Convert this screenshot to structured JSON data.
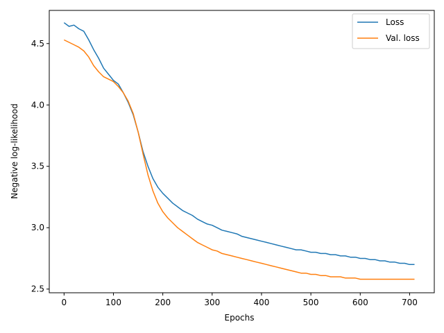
{
  "chart_data": {
    "type": "line",
    "title": "",
    "xlabel": "Epochs",
    "ylabel": "Negative log-likelihood",
    "xlim": [
      -30,
      750
    ],
    "ylim": [
      2.47,
      4.77
    ],
    "xticks": [
      0,
      100,
      200,
      300,
      400,
      500,
      600,
      700
    ],
    "xtick_labels": [
      "0",
      "100",
      "200",
      "300",
      "400",
      "500",
      "600",
      "700"
    ],
    "yticks": [
      2.5,
      3.0,
      3.5,
      4.0,
      4.5
    ],
    "ytick_labels": [
      "2.5",
      "3.0",
      "3.5",
      "4.0",
      "4.5"
    ],
    "grid": false,
    "legend_position": "top-right",
    "series": [
      {
        "name": "Loss",
        "color": "#1f77b4",
        "x": [
          0,
          10,
          20,
          30,
          40,
          50,
          60,
          70,
          80,
          90,
          100,
          110,
          120,
          130,
          140,
          150,
          160,
          170,
          180,
          190,
          200,
          210,
          220,
          230,
          240,
          250,
          260,
          270,
          280,
          290,
          300,
          310,
          320,
          330,
          340,
          350,
          360,
          370,
          380,
          390,
          400,
          410,
          420,
          430,
          440,
          450,
          460,
          470,
          480,
          490,
          500,
          510,
          520,
          530,
          540,
          550,
          560,
          570,
          580,
          590,
          600,
          610,
          620,
          630,
          640,
          650,
          660,
          670,
          680,
          690,
          700,
          710
        ],
        "y": [
          4.67,
          4.64,
          4.65,
          4.62,
          4.6,
          4.53,
          4.45,
          4.38,
          4.3,
          4.25,
          4.2,
          4.17,
          4.1,
          4.02,
          3.92,
          3.78,
          3.62,
          3.5,
          3.4,
          3.33,
          3.28,
          3.24,
          3.2,
          3.17,
          3.14,
          3.12,
          3.1,
          3.07,
          3.05,
          3.03,
          3.02,
          3.0,
          2.98,
          2.97,
          2.96,
          2.95,
          2.93,
          2.92,
          2.91,
          2.9,
          2.89,
          2.88,
          2.87,
          2.86,
          2.85,
          2.84,
          2.83,
          2.82,
          2.82,
          2.81,
          2.8,
          2.8,
          2.79,
          2.79,
          2.78,
          2.78,
          2.77,
          2.77,
          2.76,
          2.76,
          2.75,
          2.75,
          2.74,
          2.74,
          2.73,
          2.73,
          2.72,
          2.72,
          2.71,
          2.71,
          2.7,
          2.7
        ]
      },
      {
        "name": "Val. loss",
        "color": "#ff7f0e",
        "x": [
          0,
          10,
          20,
          30,
          40,
          50,
          60,
          70,
          80,
          90,
          100,
          110,
          120,
          130,
          140,
          150,
          160,
          170,
          180,
          190,
          200,
          210,
          220,
          230,
          240,
          250,
          260,
          270,
          280,
          290,
          300,
          310,
          320,
          330,
          340,
          350,
          360,
          370,
          380,
          390,
          400,
          410,
          420,
          430,
          440,
          450,
          460,
          470,
          480,
          490,
          500,
          510,
          520,
          530,
          540,
          550,
          560,
          570,
          580,
          590,
          600,
          610,
          620,
          630,
          640,
          650,
          660,
          670,
          680,
          690,
          700,
          710
        ],
        "y": [
          4.53,
          4.51,
          4.49,
          4.47,
          4.44,
          4.39,
          4.32,
          4.27,
          4.23,
          4.21,
          4.19,
          4.15,
          4.1,
          4.03,
          3.93,
          3.78,
          3.6,
          3.43,
          3.3,
          3.2,
          3.13,
          3.08,
          3.04,
          3.0,
          2.97,
          2.94,
          2.91,
          2.88,
          2.86,
          2.84,
          2.82,
          2.81,
          2.79,
          2.78,
          2.77,
          2.76,
          2.75,
          2.74,
          2.73,
          2.72,
          2.71,
          2.7,
          2.69,
          2.68,
          2.67,
          2.66,
          2.65,
          2.64,
          2.63,
          2.63,
          2.62,
          2.62,
          2.61,
          2.61,
          2.6,
          2.6,
          2.6,
          2.59,
          2.59,
          2.59,
          2.58,
          2.58,
          2.58,
          2.58,
          2.58,
          2.58,
          2.58,
          2.58,
          2.58,
          2.58,
          2.58,
          2.58
        ]
      }
    ]
  }
}
